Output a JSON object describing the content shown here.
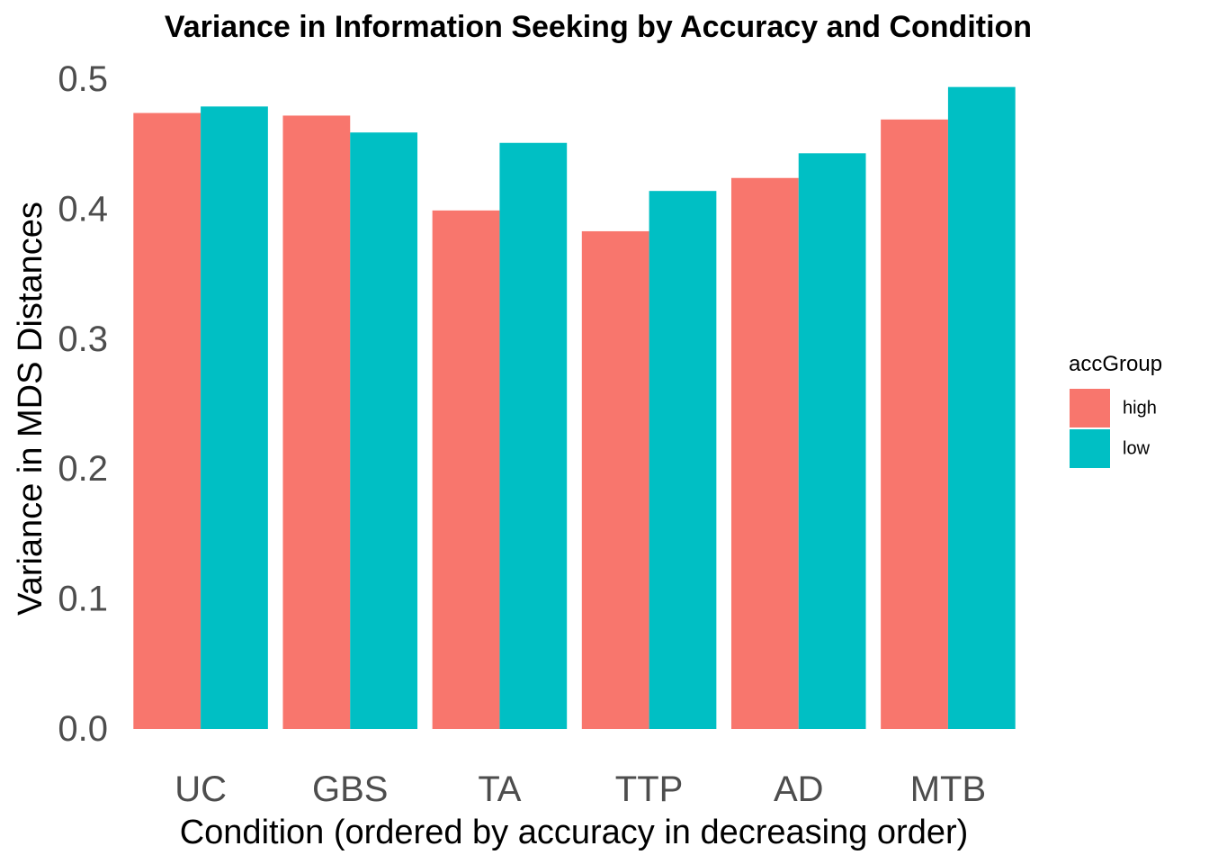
{
  "chart_data": {
    "type": "bar",
    "title": "Variance in Information Seeking by Accuracy and Condition",
    "xlabel": "Condition (ordered by accuracy in decreasing order)",
    "ylabel": "Variance in MDS Distances",
    "categories": [
      "UC",
      "GBS",
      "TA",
      "TTP",
      "AD",
      "MTB"
    ],
    "series": [
      {
        "name": "high",
        "color": "#F8766D",
        "values": [
          0.474,
          0.472,
          0.399,
          0.383,
          0.424,
          0.469
        ]
      },
      {
        "name": "low",
        "color": "#00BFC4",
        "values": [
          0.479,
          0.459,
          0.451,
          0.414,
          0.443,
          0.494
        ]
      }
    ],
    "ylim": [
      0,
      0.5
    ],
    "yticks": [
      0.0,
      0.1,
      0.2,
      0.3,
      0.4,
      0.5
    ],
    "ytick_labels": [
      "0.0",
      "0.1",
      "0.2",
      "0.3",
      "0.4",
      "0.5"
    ],
    "grid": false,
    "legend": {
      "title": "accGroup",
      "position": "right"
    }
  }
}
